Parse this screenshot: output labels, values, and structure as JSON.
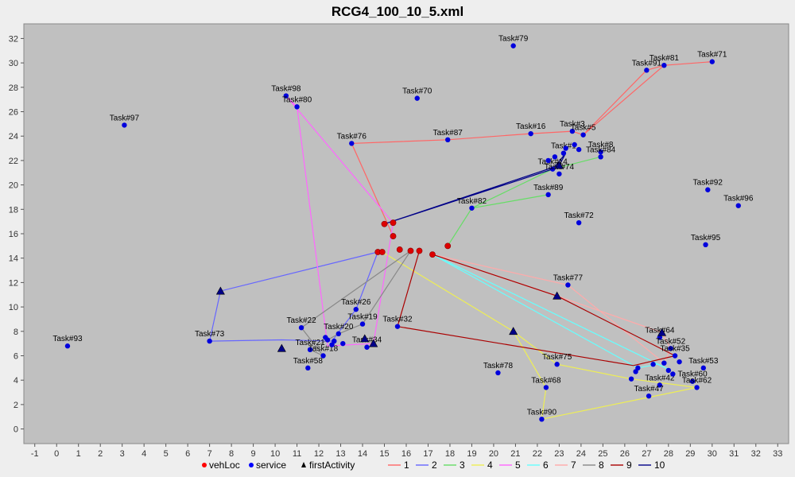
{
  "chart_data": {
    "type": "scatter",
    "title": "RCG4_100_10_5.xml",
    "xlabel": "",
    "ylabel": "",
    "xlim": [
      -1.5,
      33.5
    ],
    "ylim": [
      -1.2,
      33.2
    ],
    "x_ticks": [
      -1,
      0,
      1,
      2,
      3,
      4,
      5,
      6,
      7,
      8,
      9,
      10,
      11,
      12,
      13,
      14,
      15,
      16,
      17,
      18,
      19,
      20,
      21,
      22,
      23,
      24,
      25,
      26,
      27,
      28,
      29,
      30,
      31,
      32,
      33
    ],
    "y_ticks": [
      0,
      2,
      4,
      6,
      8,
      10,
      12,
      14,
      16,
      18,
      20,
      22,
      24,
      26,
      28,
      30,
      32
    ],
    "plot_bg": "#c0c0c0",
    "legend": {
      "position": "bottom",
      "items": [
        {
          "label": "vehLoc",
          "marker": "dot",
          "color": "#ff0000"
        },
        {
          "label": "service",
          "marker": "dot",
          "color": "#0000ff"
        },
        {
          "label": "firstActivity",
          "marker": "triangle",
          "color": "#000000"
        },
        {
          "label": "1",
          "marker": "line",
          "color": "#ff6666"
        },
        {
          "label": "2",
          "marker": "line",
          "color": "#6666ff"
        },
        {
          "label": "3",
          "marker": "line",
          "color": "#66dd66"
        },
        {
          "label": "4",
          "marker": "line",
          "color": "#eeee55"
        },
        {
          "label": "5",
          "marker": "line",
          "color": "#ff66ff"
        },
        {
          "label": "6",
          "marker": "line",
          "color": "#66ffff"
        },
        {
          "label": "7",
          "marker": "line",
          "color": "#ffaaaa"
        },
        {
          "label": "8",
          "marker": "line",
          "color": "#888888"
        },
        {
          "label": "9",
          "marker": "line",
          "color": "#aa0000"
        },
        {
          "label": "10",
          "marker": "line",
          "color": "#000088"
        }
      ]
    },
    "vehLoc": [
      [
        14.7,
        14.5
      ],
      [
        14.9,
        14.5
      ],
      [
        15.7,
        14.7
      ],
      [
        16.2,
        14.6
      ],
      [
        16.6,
        14.6
      ],
      [
        17.2,
        14.3
      ],
      [
        17.9,
        15.0
      ],
      [
        15.4,
        16.9
      ],
      [
        15.0,
        16.8
      ],
      [
        15.4,
        15.8
      ]
    ],
    "services": [
      {
        "label": "Task#79",
        "x": 20.9,
        "y": 31.4
      },
      {
        "label": "Task#81",
        "x": 27.8,
        "y": 29.8
      },
      {
        "label": "Task#71",
        "x": 30.0,
        "y": 30.1
      },
      {
        "label": "Task#91",
        "x": 27.0,
        "y": 29.4
      },
      {
        "label": "Task#98",
        "x": 10.5,
        "y": 27.3
      },
      {
        "label": "Task#80",
        "x": 11.0,
        "y": 26.4
      },
      {
        "label": "Task#70",
        "x": 16.5,
        "y": 27.1
      },
      {
        "label": "Task#97",
        "x": 3.1,
        "y": 24.9
      },
      {
        "label": "Task#76",
        "x": 13.5,
        "y": 23.4
      },
      {
        "label": "Task#87",
        "x": 17.9,
        "y": 23.7
      },
      {
        "label": "Task#16",
        "x": 21.7,
        "y": 24.2
      },
      {
        "label": "Task#3",
        "x": 23.6,
        "y": 24.4
      },
      {
        "label": "Task#5",
        "x": 24.1,
        "y": 24.1
      },
      {
        "label": "Task#8",
        "x": 24.9,
        "y": 22.7
      },
      {
        "label": "Task#84",
        "x": 24.9,
        "y": 22.3
      },
      {
        "label": "Task#1",
        "x": 23.2,
        "y": 22.6
      },
      {
        "label": "Task#14",
        "x": 22.7,
        "y": 21.3
      },
      {
        "label": "Task#74",
        "x": 23.0,
        "y": 20.9
      },
      {
        "label": "Task#92",
        "x": 29.8,
        "y": 19.6
      },
      {
        "label": "Task#96",
        "x": 31.2,
        "y": 18.3
      },
      {
        "label": "Task#89",
        "x": 22.5,
        "y": 19.2
      },
      {
        "label": "Task#82",
        "x": 19.0,
        "y": 18.1
      },
      {
        "label": "Task#72",
        "x": 23.9,
        "y": 16.9
      },
      {
        "label": "Task#95",
        "x": 29.7,
        "y": 15.1
      },
      {
        "label": "Task#77",
        "x": 23.4,
        "y": 11.8
      },
      {
        "label": "Task#26",
        "x": 13.7,
        "y": 9.8
      },
      {
        "label": "Task#19",
        "x": 14.0,
        "y": 8.6
      },
      {
        "label": "Task#22",
        "x": 11.2,
        "y": 8.3
      },
      {
        "label": "Task#20",
        "x": 12.9,
        "y": 7.8
      },
      {
        "label": "Task#73",
        "x": 7.0,
        "y": 7.2
      },
      {
        "label": "Task#32",
        "x": 15.6,
        "y": 8.4
      },
      {
        "label": "Task#34",
        "x": 14.2,
        "y": 6.7
      },
      {
        "label": "Task#21",
        "x": 11.6,
        "y": 6.5
      },
      {
        "label": "Task#18",
        "x": 12.2,
        "y": 6.0
      },
      {
        "label": "Task#58",
        "x": 11.5,
        "y": 5.0
      },
      {
        "label": "Task#93",
        "x": 0.5,
        "y": 6.8
      },
      {
        "label": "Task#64",
        "x": 27.6,
        "y": 7.5
      },
      {
        "label": "Task#52",
        "x": 28.1,
        "y": 6.6
      },
      {
        "label": "Task#35",
        "x": 28.3,
        "y": 6.0
      },
      {
        "label": "Task#53",
        "x": 29.6,
        "y": 5.0
      },
      {
        "label": "Task#75",
        "x": 22.9,
        "y": 5.3
      },
      {
        "label": "Task#78",
        "x": 20.2,
        "y": 4.6
      },
      {
        "label": "Task#60",
        "x": 29.1,
        "y": 3.9
      },
      {
        "label": "Task#42",
        "x": 27.6,
        "y": 3.6
      },
      {
        "label": "Task#62",
        "x": 29.3,
        "y": 3.4
      },
      {
        "label": "Task#47",
        "x": 27.1,
        "y": 2.7
      },
      {
        "label": "Task#68",
        "x": 22.4,
        "y": 3.4
      },
      {
        "label": "Task#90",
        "x": 22.2,
        "y": 0.8
      },
      {
        "label": "",
        "x": 23.3,
        "y": 23.0
      },
      {
        "label": "",
        "x": 22.8,
        "y": 22.3
      },
      {
        "label": "",
        "x": 23.7,
        "y": 23.3
      },
      {
        "label": "",
        "x": 22.5,
        "y": 22.0
      },
      {
        "label": "",
        "x": 23.9,
        "y": 22.9
      },
      {
        "label": "",
        "x": 12.4,
        "y": 7.3
      },
      {
        "label": "",
        "x": 12.7,
        "y": 7.2
      },
      {
        "label": "",
        "x": 12.3,
        "y": 7.5
      },
      {
        "label": "",
        "x": 13.1,
        "y": 7.0
      },
      {
        "label": "",
        "x": 12.6,
        "y": 6.9
      },
      {
        "label": "",
        "x": 26.6,
        "y": 5.0
      },
      {
        "label": "",
        "x": 26.3,
        "y": 4.1
      },
      {
        "label": "",
        "x": 26.5,
        "y": 4.7
      },
      {
        "label": "",
        "x": 27.8,
        "y": 5.4
      },
      {
        "label": "",
        "x": 28.0,
        "y": 4.8
      },
      {
        "label": "",
        "x": 28.5,
        "y": 5.5
      },
      {
        "label": "",
        "x": 27.3,
        "y": 5.3
      },
      {
        "label": "",
        "x": 28.2,
        "y": 4.5
      }
    ],
    "firstActivity": [
      [
        7.5,
        11.3
      ],
      [
        10.3,
        6.6
      ],
      [
        14.5,
        7.0
      ],
      [
        20.9,
        8.0
      ],
      [
        22.9,
        10.9
      ],
      [
        27.7,
        7.9
      ],
      [
        23.0,
        21.6
      ],
      [
        14.1,
        7.4
      ]
    ],
    "routes": [
      {
        "name": "1",
        "color": "#ff6666",
        "points": [
          [
            15.4,
            15.8
          ],
          [
            13.5,
            23.4
          ],
          [
            17.9,
            23.7
          ],
          [
            21.7,
            24.2
          ],
          [
            23.6,
            24.4
          ],
          [
            24.1,
            24.1
          ],
          [
            27.0,
            29.4
          ],
          [
            27.8,
            29.8
          ],
          [
            30.0,
            30.1
          ],
          [
            27.8,
            29.8
          ],
          [
            24.1,
            24.1
          ]
        ]
      },
      {
        "name": "2",
        "color": "#6666ff",
        "points": [
          [
            14.7,
            14.5
          ],
          [
            7.5,
            11.3
          ],
          [
            7.0,
            7.2
          ],
          [
            10.3,
            7.3
          ],
          [
            12.6,
            7.2
          ],
          [
            13.7,
            9.8
          ],
          [
            14.7,
            14.5
          ]
        ]
      },
      {
        "name": "3",
        "color": "#66dd66",
        "points": [
          [
            17.9,
            15.0
          ],
          [
            19.0,
            18.1
          ],
          [
            22.5,
            19.2
          ],
          [
            19.0,
            18.1
          ],
          [
            22.7,
            21.3
          ],
          [
            24.9,
            22.3
          ],
          [
            24.9,
            22.7
          ]
        ]
      },
      {
        "name": "4",
        "color": "#eeee55",
        "points": [
          [
            14.9,
            14.5
          ],
          [
            20.9,
            8.0
          ],
          [
            22.4,
            3.4
          ],
          [
            22.2,
            0.8
          ],
          [
            29.3,
            3.4
          ],
          [
            26.3,
            4.1
          ],
          [
            22.9,
            5.3
          ],
          [
            20.9,
            8.0
          ],
          [
            14.9,
            14.5
          ]
        ]
      },
      {
        "name": "5",
        "color": "#ff66ff",
        "points": [
          [
            15.4,
            16.9
          ],
          [
            10.5,
            27.3
          ],
          [
            11.0,
            26.4
          ],
          [
            12.4,
            6.8
          ],
          [
            14.5,
            7.0
          ],
          [
            15.4,
            16.9
          ]
        ]
      },
      {
        "name": "6",
        "color": "#66ffff",
        "points": [
          [
            17.2,
            14.3
          ],
          [
            26.6,
            5.0
          ],
          [
            27.5,
            5.3
          ],
          [
            28.0,
            4.9
          ],
          [
            17.2,
            14.3
          ]
        ]
      },
      {
        "name": "7",
        "color": "#ffaaaa",
        "points": [
          [
            17.2,
            14.3
          ],
          [
            22.9,
            10.9
          ],
          [
            27.7,
            7.9
          ],
          [
            28.1,
            6.6
          ],
          [
            27.8,
            5.4
          ],
          [
            23.4,
            11.8
          ],
          [
            17.2,
            14.3
          ]
        ]
      },
      {
        "name": "8",
        "color": "#888888",
        "points": [
          [
            16.2,
            14.6
          ],
          [
            11.2,
            8.3
          ],
          [
            12.2,
            6.0
          ],
          [
            11.6,
            6.5
          ],
          [
            12.9,
            7.8
          ],
          [
            14.0,
            8.6
          ],
          [
            16.2,
            14.6
          ]
        ]
      },
      {
        "name": "9",
        "color": "#aa0000",
        "points": [
          [
            16.6,
            14.6
          ],
          [
            15.6,
            8.4
          ],
          [
            26.4,
            5.2
          ],
          [
            28.3,
            6.0
          ],
          [
            22.9,
            10.9
          ],
          [
            17.2,
            14.3
          ]
        ]
      },
      {
        "name": "10",
        "color": "#000088",
        "points": [
          [
            15.0,
            16.8
          ],
          [
            23.0,
            21.6
          ],
          [
            23.3,
            22.6
          ],
          [
            22.7,
            21.3
          ],
          [
            15.0,
            16.8
          ]
        ]
      }
    ]
  }
}
